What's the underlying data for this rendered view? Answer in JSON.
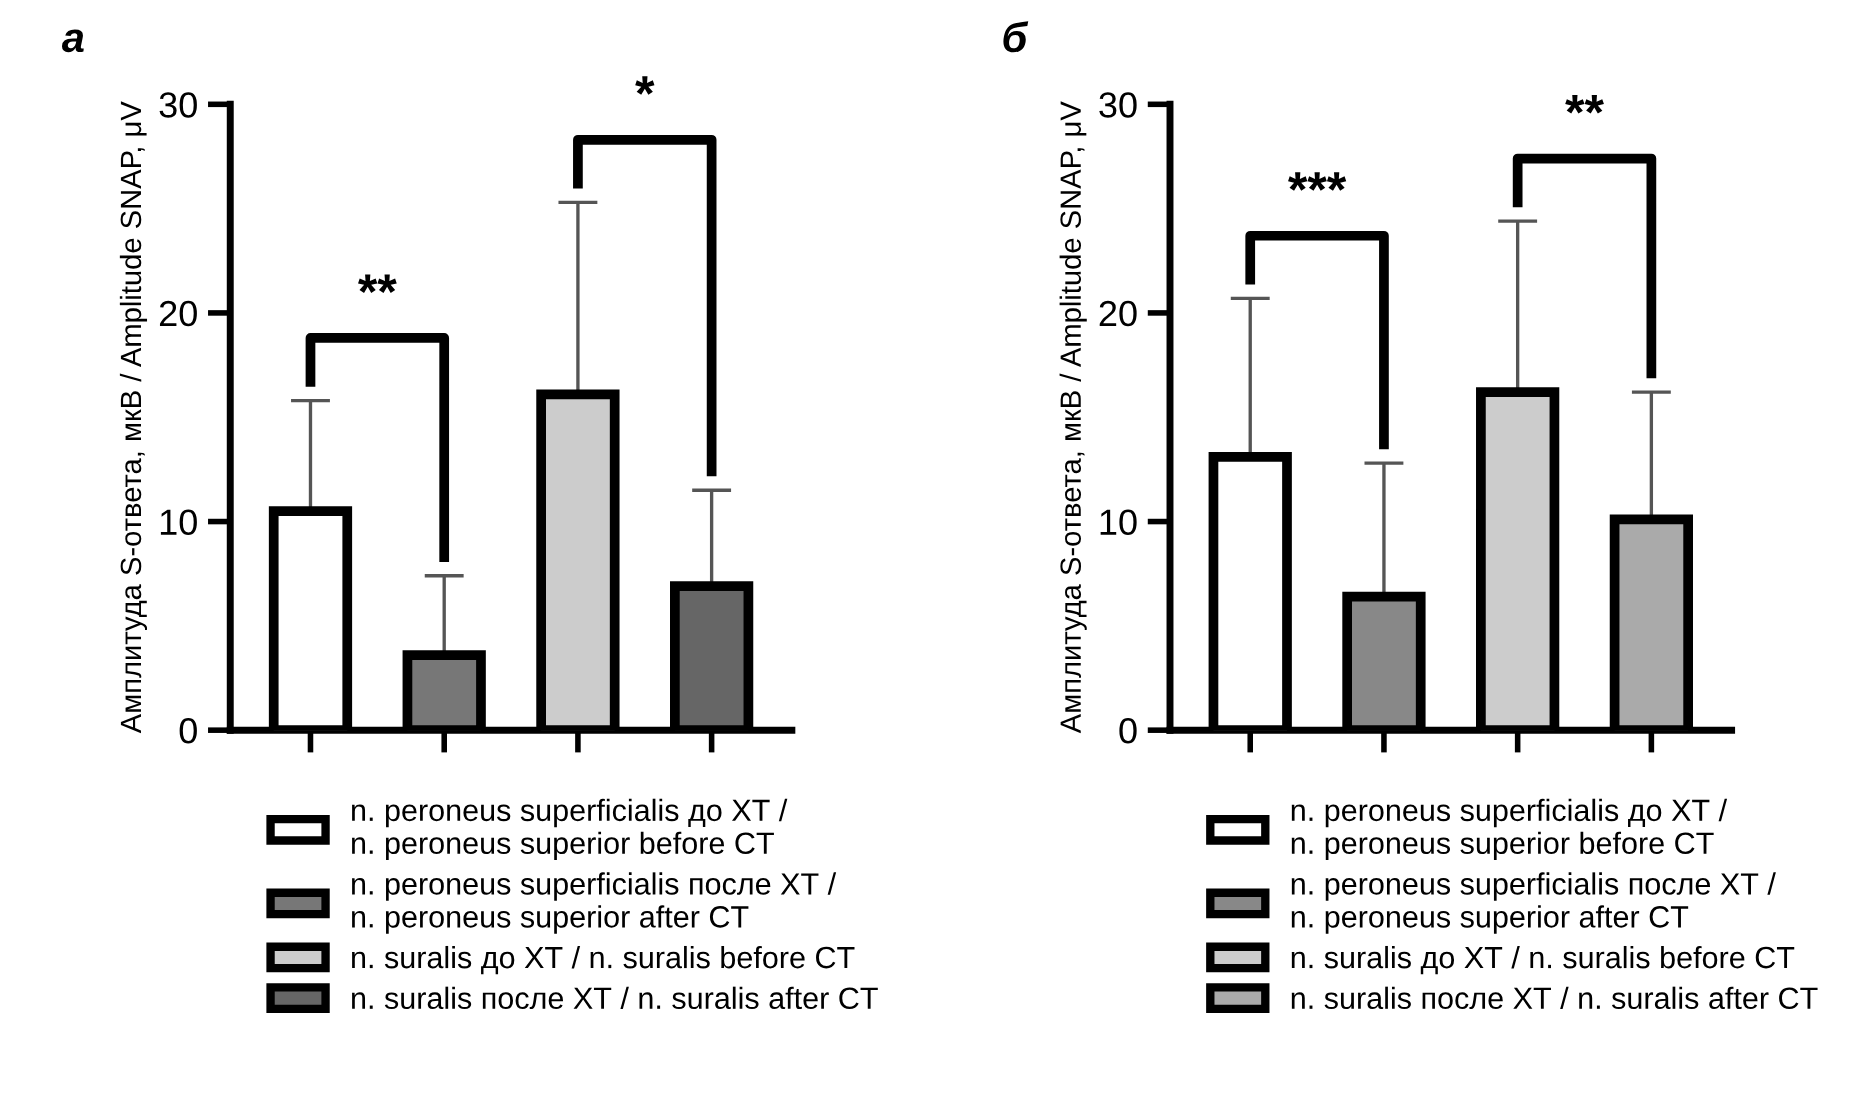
{
  "chart_data": [
    {
      "type": "bar",
      "title": "а",
      "ylabel": "Амплитуда S-ответа, мкВ / Amplitude SNAP, μV",
      "categories": [
        null,
        null,
        null,
        null
      ],
      "series": [
        {
          "name": "n. peroneus superficialis до ХТ /\nn. peroneus superior before CT",
          "color": "#ffffff",
          "values": [
            10.5,
            null,
            null,
            null
          ],
          "errors": [
            5.3,
            null,
            null,
            null
          ]
        },
        {
          "name": "n. peroneus superficialis после ХТ /\nn. peroneus superior after CT",
          "color": "#777777",
          "values": [
            null,
            3.6,
            null,
            null
          ],
          "errors": [
            null,
            3.8,
            null,
            null
          ]
        },
        {
          "name": "n. suralis до ХТ / n. suralis before CT",
          "color": "#cccccc",
          "values": [
            null,
            null,
            16.1,
            null
          ],
          "errors": [
            null,
            null,
            9.2,
            null
          ]
        },
        {
          "name": "n. suralis после ХТ / n. suralis after CT",
          "color": "#666666",
          "values": [
            null,
            null,
            null,
            6.9
          ],
          "errors": [
            null,
            null,
            null,
            4.6
          ]
        }
      ],
      "annotations": [
        "**",
        "*"
      ],
      "ylim": [
        0,
        30
      ],
      "yticks": [
        0,
        10,
        20,
        30
      ],
      "tick_labels": "y",
      "grid": false,
      "legend": "bottom"
    },
    {
      "type": "bar",
      "title": "б",
      "ylabel": "Амплитуда S-ответа, мкВ / Amplitude SNAP, μV",
      "categories": [
        null,
        null,
        null,
        null
      ],
      "series": [
        {
          "name": "n. peroneus superficialis до ХТ /\nn. peroneus superior before CT",
          "color": "#ffffff",
          "values": [
            13.1,
            null,
            null,
            null
          ],
          "errors": [
            7.6,
            null,
            null,
            null
          ]
        },
        {
          "name": "n. peroneus superficialis после ХТ /\nn. peroneus superior after CT",
          "color": "#888888",
          "values": [
            null,
            6.4,
            null,
            null
          ],
          "errors": [
            null,
            6.4,
            null,
            null
          ]
        },
        {
          "name": "n. suralis до ХТ / n. suralis before CT",
          "color": "#cccccc",
          "values": [
            null,
            null,
            16.2,
            null
          ],
          "errors": [
            null,
            null,
            8.2,
            null
          ]
        },
        {
          "name": "n. suralis после ХТ / n. suralis after CT",
          "color": "#aaaaaa",
          "values": [
            null,
            null,
            null,
            10.1
          ],
          "errors": [
            null,
            null,
            null,
            6.1
          ]
        }
      ],
      "annotations": [
        "***",
        "**"
      ],
      "ylim": [
        0,
        30
      ],
      "yticks": [
        0,
        10,
        20,
        30
      ],
      "tick_labels": "y",
      "grid": false,
      "legend": "bottom"
    }
  ]
}
